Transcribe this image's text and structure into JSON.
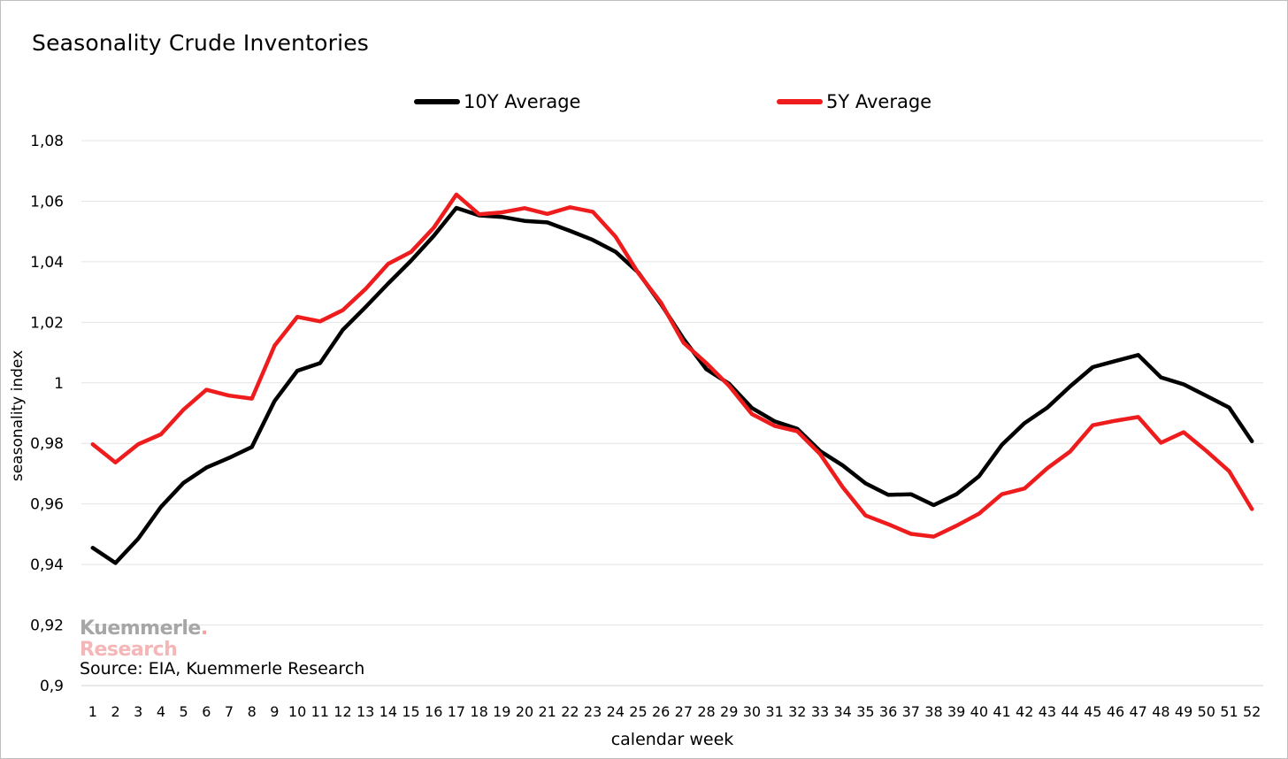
{
  "chart_data": {
    "type": "line",
    "title": "Seasonality Crude Inventories",
    "xlabel": "calendar week",
    "ylabel": "seasonality index",
    "ylim": [
      0.9,
      1.08
    ],
    "yticks": [
      0.9,
      0.92,
      0.94,
      0.96,
      0.98,
      1.0,
      1.02,
      1.04,
      1.06,
      1.08
    ],
    "ytick_labels": [
      "0,9",
      "0,92",
      "0,94",
      "0,96",
      "0,98",
      "1",
      "1,02",
      "1,04",
      "1,06",
      "1,08"
    ],
    "categories": [
      "1",
      "2",
      "3",
      "4",
      "5",
      "6",
      "7",
      "8",
      "9",
      "10",
      "11",
      "12",
      "13",
      "14",
      "15",
      "16",
      "17",
      "18",
      "19",
      "20",
      "21",
      "22",
      "23",
      "24",
      "25",
      "26",
      "27",
      "28",
      "29",
      "30",
      "31",
      "32",
      "33",
      "34",
      "35",
      "36",
      "37",
      "38",
      "39",
      "40",
      "41",
      "42",
      "43",
      "44",
      "45",
      "46",
      "47",
      "48",
      "49",
      "50",
      "51",
      "52"
    ],
    "grid": true,
    "legend_position": "top",
    "series": [
      {
        "name": "10Y Average",
        "color": "#000000",
        "values": [
          0.9455,
          0.9405,
          0.9485,
          0.959,
          0.967,
          0.972,
          0.9752,
          0.9788,
          0.994,
          1.004,
          1.0065,
          1.0175,
          1.025,
          1.0328,
          1.0403,
          1.0485,
          1.0578,
          1.0553,
          1.0548,
          1.0535,
          1.053,
          1.0502,
          1.0472,
          1.0433,
          1.0365,
          1.026,
          1.0145,
          1.0045,
          0.9997,
          0.9917,
          0.9873,
          0.9848,
          0.9775,
          0.9727,
          0.9668,
          0.963,
          0.9632,
          0.9596,
          0.9632,
          0.9692,
          0.9795,
          0.9867,
          0.9918,
          0.9988,
          1.0052,
          1.0072,
          1.0092,
          1.0018,
          0.9995,
          0.9957,
          0.9918,
          0.9807
        ]
      },
      {
        "name": "5Y Average",
        "color": "#ee1c1c",
        "values": [
          0.9797,
          0.9737,
          0.9797,
          0.983,
          0.9912,
          0.9977,
          0.9958,
          0.9948,
          1.0123,
          1.0218,
          1.0203,
          1.024,
          1.031,
          1.0393,
          1.0432,
          1.0512,
          1.0622,
          1.0557,
          1.0563,
          1.0577,
          1.0558,
          1.058,
          1.0565,
          1.0483,
          1.0363,
          1.0265,
          1.0132,
          1.0065,
          0.999,
          0.9897,
          0.9858,
          0.984,
          0.9765,
          0.9655,
          0.9562,
          0.9533,
          0.9501,
          0.9492,
          0.9528,
          0.9568,
          0.9632,
          0.9651,
          0.9718,
          0.9773,
          0.986,
          0.9875,
          0.9887,
          0.9802,
          0.9837,
          0.9775,
          0.9708,
          0.9583
        ]
      }
    ]
  },
  "annotations": {
    "logo_line1": "Kuemmerle",
    "logo_dot": ".",
    "logo_line2": "Research",
    "source": "Source: EIA, Kuemmerle Research"
  }
}
